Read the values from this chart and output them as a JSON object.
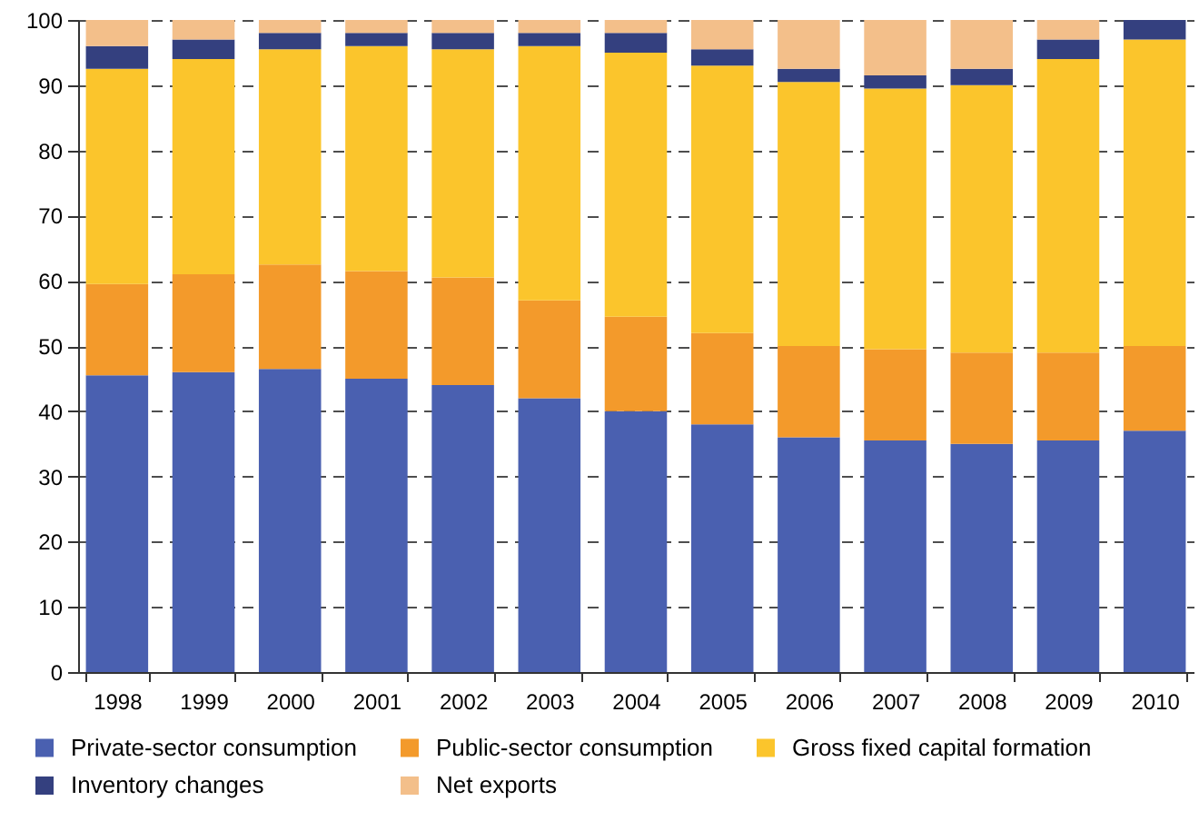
{
  "chart_data": {
    "type": "bar",
    "stacked": true,
    "categories": [
      "1998",
      "1999",
      "2000",
      "2001",
      "2002",
      "2003",
      "2004",
      "2005",
      "2006",
      "2007",
      "2008",
      "2009",
      "2010"
    ],
    "series": [
      {
        "name": "Private-sector consumption",
        "color": "#4a60b0",
        "values": [
          45.5,
          46,
          46.5,
          45,
          44,
          42,
          40,
          38,
          36,
          35.5,
          35,
          35.5,
          37
        ]
      },
      {
        "name": "Public-sector consumption",
        "color": "#f39a2b",
        "values": [
          14,
          15,
          16,
          16.5,
          16.5,
          15,
          14.5,
          14,
          14,
          14,
          14,
          13.5,
          13
        ]
      },
      {
        "name": "Gross fixed capital formation",
        "color": "#fbc52c",
        "values": [
          33,
          33,
          33,
          34.5,
          35,
          39,
          40.5,
          41,
          40.5,
          40,
          41,
          45,
          47
        ]
      },
      {
        "name": "Inventory changes",
        "color": "#34407f",
        "values": [
          3.5,
          3,
          2.5,
          2,
          2.5,
          2,
          3,
          2.5,
          2,
          2,
          2.5,
          3,
          3
        ]
      },
      {
        "name": "Net exports",
        "color": "#f3bf8a",
        "values": [
          4,
          3,
          2,
          2,
          2,
          2,
          2,
          4.5,
          7.5,
          8.5,
          7.5,
          3,
          null
        ]
      }
    ],
    "ylim": [
      0,
      100
    ],
    "yticks": [
      0,
      10,
      20,
      30,
      40,
      50,
      60,
      70,
      80,
      90,
      100
    ],
    "grid": "y",
    "legend": "bottom"
  }
}
